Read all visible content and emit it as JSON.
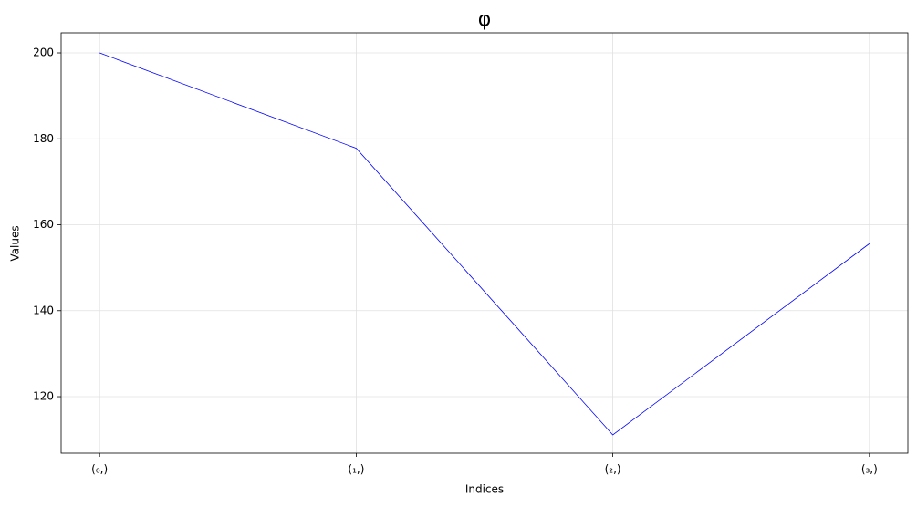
{
  "chart_data": {
    "type": "line",
    "title": "φ",
    "x_label": "Indices",
    "y_label": "Values",
    "categories": [
      "(₀,)",
      "(₁,)",
      "(₂,)",
      "(₃,)"
    ],
    "values": [
      200,
      177.8,
      111.1,
      155.6
    ],
    "color": "#0000ff",
    "ylim": [
      106.85,
      204.67
    ],
    "yticks": [
      120,
      140,
      160,
      180,
      200
    ],
    "grid": true
  }
}
